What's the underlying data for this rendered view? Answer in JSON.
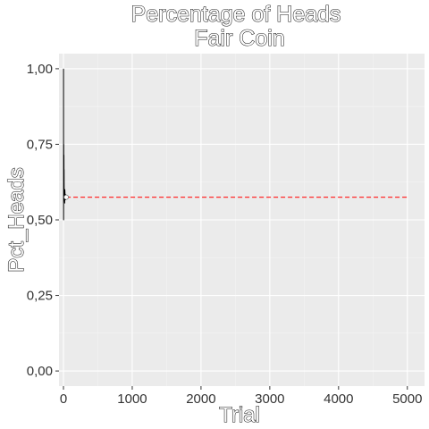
{
  "chart_data": {
    "type": "line",
    "title": "Percentage of Heads",
    "subtitle": "Fair Coin",
    "xlabel": "Trial",
    "ylabel": "Pct_Heads",
    "xlim": [
      -65,
      5250
    ],
    "ylim": [
      -0.05,
      1.05
    ],
    "x_ticks": [
      0,
      1000,
      2000,
      3000,
      4000,
      5000
    ],
    "x_tick_labels": [
      "0",
      "1000",
      "2000",
      "3000",
      "4000",
      "5000"
    ],
    "y_ticks": [
      0,
      0.25,
      0.5,
      0.75,
      1.0
    ],
    "y_tick_labels": [
      "0,00",
      "0,25",
      "0,50",
      "0,75",
      "1,00"
    ],
    "grid": true,
    "series": [
      {
        "style": "solid",
        "color": "#000000",
        "x": [
          1,
          2,
          3,
          4,
          5,
          6,
          7,
          8,
          9,
          10,
          12,
          14,
          16,
          18,
          20,
          22,
          24,
          26,
          28,
          30,
          33,
          36,
          40
        ],
        "y": [
          1.0,
          0.5,
          0.6667,
          0.75,
          0.6,
          0.6667,
          0.7143,
          0.625,
          0.6667,
          0.6,
          0.5833,
          0.5714,
          0.5625,
          0.5556,
          0.6,
          0.5909,
          0.5833,
          0.5769,
          0.5714,
          0.5667,
          0.5758,
          0.5833,
          0.575
        ]
      },
      {
        "style": "dashed",
        "color": "#ff2a2a",
        "x": [
          40,
          5000
        ],
        "y": [
          0.575,
          0.575
        ]
      }
    ],
    "point": {
      "x": 40,
      "y": 0.575,
      "color": "#ffffff"
    }
  }
}
